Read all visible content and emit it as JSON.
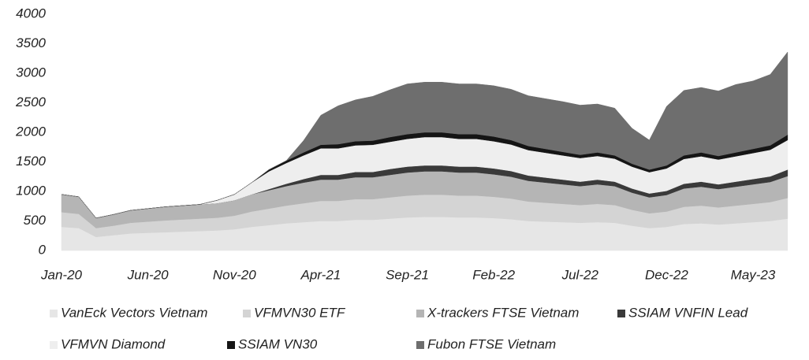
{
  "chart_data": {
    "type": "stacked_area",
    "categories": [
      "Jan-20",
      null,
      null,
      null,
      null,
      "Jun-20",
      null,
      null,
      null,
      null,
      "Nov-20",
      null,
      null,
      null,
      null,
      "Apr-21",
      null,
      null,
      null,
      null,
      "Sep-21",
      null,
      null,
      null,
      null,
      "Feb-22",
      null,
      null,
      null,
      null,
      "Jul-22",
      null,
      null,
      null,
      null,
      "Dec-22",
      null,
      null,
      null,
      null,
      "May-23",
      null,
      null
    ],
    "ylim": [
      0,
      4000
    ],
    "yticks": [
      0,
      500,
      1000,
      1500,
      2000,
      2500,
      3000,
      3500,
      4000
    ],
    "grid": false,
    "series": [
      {
        "name": "VanEck Vectors Vietnam",
        "color": "#e6e6e6",
        "values": [
          400,
          380,
          230,
          260,
          290,
          300,
          310,
          320,
          330,
          340,
          360,
          400,
          430,
          460,
          480,
          500,
          500,
          520,
          520,
          540,
          560,
          570,
          570,
          560,
          560,
          550,
          530,
          500,
          490,
          480,
          470,
          480,
          470,
          420,
          380,
          400,
          450,
          460,
          440,
          460,
          480,
          500,
          540
        ]
      },
      {
        "name": "VFMVN30 ETF",
        "color": "#d4d4d4",
        "values": [
          250,
          240,
          150,
          160,
          180,
          190,
          200,
          205,
          210,
          215,
          230,
          260,
          280,
          300,
          320,
          340,
          340,
          350,
          350,
          360,
          370,
          375,
          375,
          370,
          370,
          360,
          350,
          330,
          320,
          310,
          300,
          310,
          300,
          270,
          250,
          260,
          290,
          300,
          290,
          300,
          310,
          320,
          350
        ]
      },
      {
        "name": "X-trackers FTSE Vietnam",
        "color": "#b5b5b5",
        "values": [
          300,
          290,
          170,
          190,
          210,
          220,
          230,
          235,
          240,
          245,
          260,
          290,
          310,
          330,
          350,
          360,
          360,
          370,
          370,
          380,
          390,
          395,
          395,
          390,
          390,
          380,
          370,
          350,
          340,
          330,
          320,
          330,
          320,
          290,
          270,
          280,
          310,
          320,
          310,
          320,
          330,
          340,
          370
        ]
      },
      {
        "name": "SSIAM VNFIN Lead",
        "color": "#3a3a3a",
        "values": [
          0,
          0,
          0,
          0,
          0,
          0,
          0,
          0,
          0,
          0,
          0,
          0,
          20,
          40,
          60,
          80,
          80,
          90,
          90,
          100,
          100,
          100,
          100,
          100,
          100,
          100,
          95,
          90,
          85,
          80,
          75,
          80,
          75,
          70,
          65,
          70,
          80,
          85,
          80,
          85,
          90,
          95,
          110
        ]
      },
      {
        "name": "VFMVN Diamond",
        "color": "#eeeeee",
        "values": [
          0,
          0,
          0,
          0,
          0,
          0,
          0,
          0,
          0,
          50,
          100,
          200,
          300,
          350,
          400,
          450,
          450,
          450,
          460,
          460,
          470,
          480,
          480,
          470,
          470,
          460,
          450,
          430,
          420,
          410,
          400,
          400,
          390,
          370,
          360,
          380,
          420,
          430,
          420,
          430,
          440,
          450,
          500
        ]
      },
      {
        "name": "SSIAM VN30",
        "color": "#151515",
        "values": [
          0,
          0,
          0,
          0,
          0,
          0,
          0,
          0,
          0,
          0,
          0,
          0,
          30,
          40,
          50,
          60,
          70,
          70,
          70,
          80,
          80,
          80,
          80,
          80,
          80,
          80,
          75,
          70,
          65,
          60,
          55,
          60,
          55,
          50,
          45,
          50,
          60,
          65,
          60,
          65,
          70,
          75,
          90
        ]
      },
      {
        "name": "Fubon FTSE Vietnam",
        "color": "#6e6e6e",
        "values": [
          0,
          0,
          0,
          0,
          0,
          0,
          0,
          0,
          0,
          0,
          0,
          0,
          0,
          0,
          200,
          500,
          650,
          700,
          750,
          800,
          850,
          850,
          850,
          850,
          850,
          860,
          860,
          850,
          850,
          850,
          840,
          820,
          800,
          600,
          500,
          1000,
          1100,
          1100,
          1100,
          1150,
          1150,
          1200,
          1400
        ]
      }
    ]
  }
}
